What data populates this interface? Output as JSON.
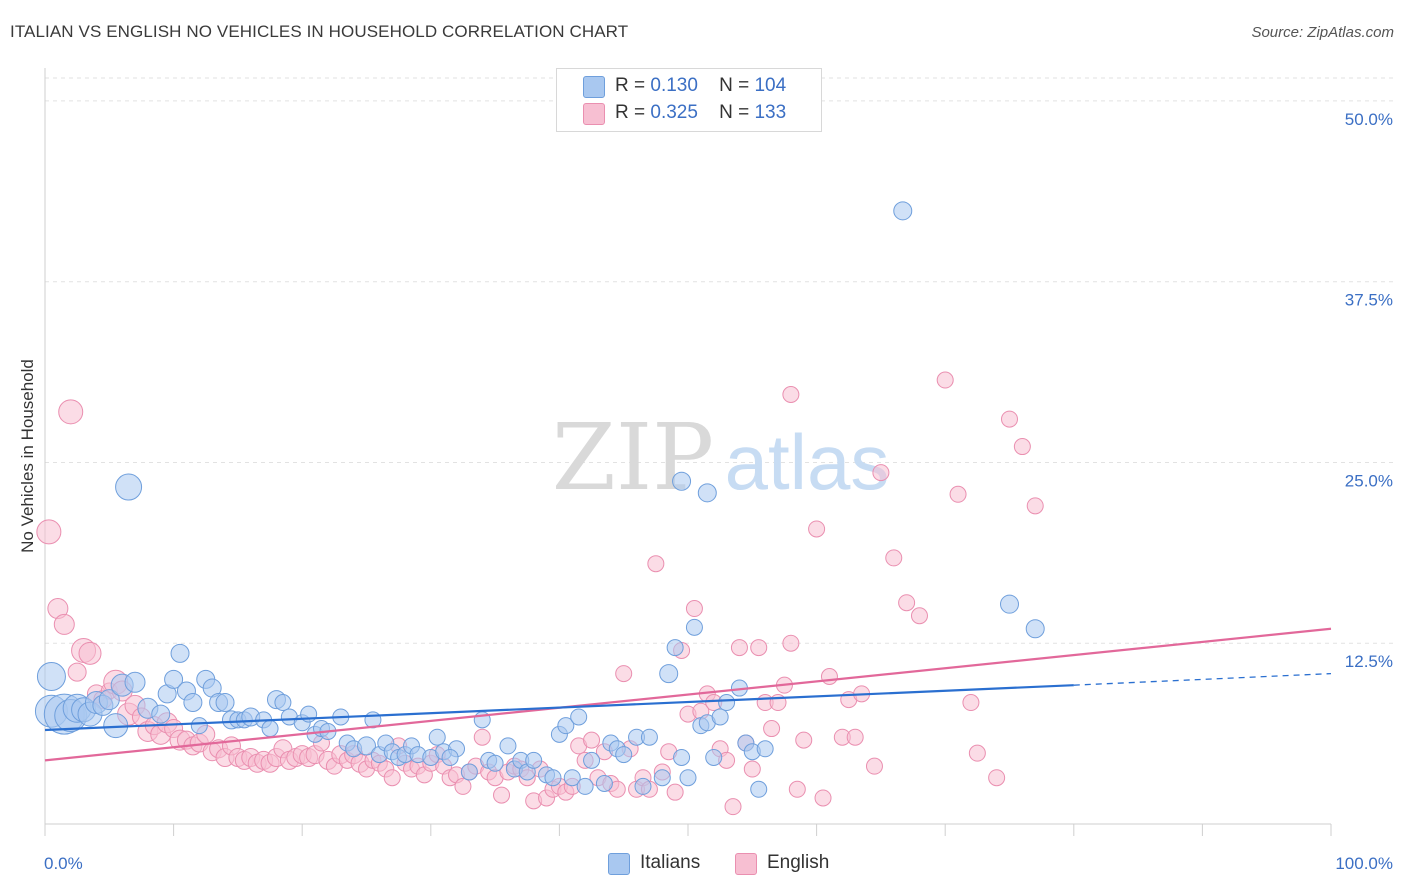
{
  "header": {
    "title": "ITALIAN VS ENGLISH NO VEHICLES IN HOUSEHOLD CORRELATION CHART",
    "source": "Source: ZipAtlas.com"
  },
  "watermark": {
    "zip": "ZIP",
    "atlas": "atlas"
  },
  "legend": {
    "rows": [
      {
        "r_label": "R =",
        "r_value": "0.130",
        "n_label": "N =",
        "n_value": "104"
      },
      {
        "r_label": "R =",
        "r_value": "0.325",
        "n_label": "N =",
        "n_value": "133"
      }
    ]
  },
  "bottom_legend": {
    "italians": "Italians",
    "english": "English"
  },
  "colors": {
    "italians_fill": "#a9c8f0",
    "italians_stroke": "#6f9fdc",
    "italians_line": "#2a6fd0",
    "english_fill": "#f7bfd2",
    "english_stroke": "#ea8fb0",
    "english_line": "#e2689a",
    "tick_label": "#3b6fc4",
    "grid": "#e2e2e2"
  },
  "chart_data": {
    "type": "scatter",
    "title": "ITALIAN VS ENGLISH NO VEHICLES IN HOUSEHOLD CORRELATION CHART",
    "xlabel": "",
    "ylabel": "No Vehicles in Household",
    "xlim": [
      0,
      100
    ],
    "ylim": [
      0,
      52
    ],
    "x_tick_labels": [
      "0.0%",
      "100.0%"
    ],
    "y_ticks": [
      12.5,
      25.0,
      37.5,
      50.0
    ],
    "y_tick_labels": [
      "12.5%",
      "25.0%",
      "37.5%",
      "50.0%"
    ],
    "grid": "horizontal dashed",
    "legend_position": "top-center",
    "series": [
      {
        "name": "Italians",
        "R": 0.13,
        "N": 104,
        "trend": {
          "x0": 0,
          "y0": 6.5,
          "x1": 80,
          "y1": 9.6,
          "dashed_to_x": 100,
          "dashed_to_y": 10.4
        },
        "points": [
          [
            0.5,
            10.2,
            14
          ],
          [
            0.5,
            7.8,
            16
          ],
          [
            1.5,
            7.6,
            20
          ],
          [
            2,
            7.5,
            16
          ],
          [
            2.5,
            8,
            14
          ],
          [
            3,
            7.9,
            12
          ],
          [
            3.5,
            7.6,
            12
          ],
          [
            4,
            8.4,
            11
          ],
          [
            4.5,
            8.2,
            10
          ],
          [
            5,
            8.6,
            10
          ],
          [
            5.5,
            6.8,
            12
          ],
          [
            6,
            9.6,
            11
          ],
          [
            7,
            9.8,
            10
          ],
          [
            6.5,
            23.3,
            13
          ],
          [
            8,
            8,
            10
          ],
          [
            9,
            7.6,
            9
          ],
          [
            9.5,
            9,
            9
          ],
          [
            10,
            10,
            9
          ],
          [
            10.5,
            11.8,
            9
          ],
          [
            11,
            9.2,
            9
          ],
          [
            11.5,
            8.4,
            9
          ],
          [
            12,
            6.8,
            8
          ],
          [
            12.5,
            10,
            9
          ],
          [
            13,
            9.4,
            9
          ],
          [
            13.5,
            8.4,
            9
          ],
          [
            14,
            8.4,
            9
          ],
          [
            14.5,
            7.2,
            9
          ],
          [
            15,
            7.2,
            8
          ],
          [
            15.5,
            7.2,
            8
          ],
          [
            16,
            7.4,
            9
          ],
          [
            17,
            7.2,
            8
          ],
          [
            17.5,
            6.6,
            8
          ],
          [
            18,
            8.6,
            9
          ],
          [
            18.5,
            8.4,
            8
          ],
          [
            19,
            7.4,
            8
          ],
          [
            20,
            7,
            8
          ],
          [
            20.5,
            7.6,
            8
          ],
          [
            21,
            6.2,
            8
          ],
          [
            21.5,
            6.6,
            8
          ],
          [
            22,
            6.4,
            8
          ],
          [
            23,
            7.4,
            8
          ],
          [
            23.5,
            5.6,
            8
          ],
          [
            24,
            5.2,
            8
          ],
          [
            25,
            5.4,
            9
          ],
          [
            25.5,
            7.2,
            8
          ],
          [
            26,
            4.8,
            8
          ],
          [
            26.5,
            5.6,
            8
          ],
          [
            27,
            5,
            8
          ],
          [
            27.5,
            4.6,
            8
          ],
          [
            28,
            4.8,
            8
          ],
          [
            28.5,
            5.4,
            8
          ],
          [
            29,
            4.8,
            8
          ],
          [
            30,
            4.6,
            8
          ],
          [
            30.5,
            6,
            8
          ],
          [
            31,
            5,
            8
          ],
          [
            32,
            5.2,
            8
          ],
          [
            33,
            3.6,
            8
          ],
          [
            31.5,
            4.6,
            8
          ],
          [
            34,
            7.2,
            8
          ],
          [
            34.5,
            4.4,
            8
          ],
          [
            35,
            4.2,
            8
          ],
          [
            36,
            5.4,
            8
          ],
          [
            36.5,
            3.8,
            8
          ],
          [
            37,
            4.4,
            8
          ],
          [
            37.5,
            3.6,
            8
          ],
          [
            38,
            4.4,
            8
          ],
          [
            39,
            3.4,
            8
          ],
          [
            39.5,
            3.2,
            8
          ],
          [
            40,
            6.2,
            8
          ],
          [
            40.5,
            6.8,
            8
          ],
          [
            41,
            3.2,
            8
          ],
          [
            41.5,
            7.4,
            8
          ],
          [
            42,
            2.6,
            8
          ],
          [
            42.5,
            4.4,
            8
          ],
          [
            43.5,
            2.8,
            8
          ],
          [
            44,
            5.6,
            8
          ],
          [
            44.5,
            5.2,
            8
          ],
          [
            45,
            4.8,
            8
          ],
          [
            46,
            6,
            8
          ],
          [
            46.5,
            2.6,
            8
          ],
          [
            47,
            6,
            8
          ],
          [
            48,
            3.2,
            8
          ],
          [
            48.5,
            10.4,
            9
          ],
          [
            49,
            12.2,
            8
          ],
          [
            49.5,
            4.6,
            8
          ],
          [
            50,
            3.2,
            8
          ],
          [
            51,
            6.8,
            8
          ],
          [
            51.5,
            7,
            8
          ],
          [
            52,
            4.6,
            8
          ],
          [
            52.5,
            7.4,
            8
          ],
          [
            53,
            8.4,
            8
          ],
          [
            49.5,
            23.7,
            9
          ],
          [
            51.5,
            22.9,
            9
          ],
          [
            50.5,
            13.6,
            8
          ],
          [
            54.5,
            5.6,
            8
          ],
          [
            55,
            5,
            8
          ],
          [
            56,
            5.2,
            8
          ],
          [
            54,
            9.4,
            8
          ],
          [
            55.5,
            2.4,
            8
          ],
          [
            66.7,
            42.4,
            9
          ],
          [
            75,
            15.2,
            9
          ],
          [
            77,
            13.5,
            9
          ]
        ]
      },
      {
        "name": "English",
        "R": 0.325,
        "N": 133,
        "trend": {
          "x0": 0,
          "y0": 4.4,
          "x1": 100,
          "y1": 13.5
        },
        "points": [
          [
            0.3,
            20.2,
            12
          ],
          [
            1,
            14.9,
            10
          ],
          [
            1.5,
            13.8,
            10
          ],
          [
            2,
            28.5,
            12
          ],
          [
            2.5,
            10.5,
            9
          ],
          [
            3,
            12,
            12
          ],
          [
            3.5,
            11.8,
            11
          ],
          [
            4,
            9,
            9
          ],
          [
            4.5,
            8.6,
            9
          ],
          [
            5,
            9.2,
            8
          ],
          [
            5.5,
            9.8,
            12
          ],
          [
            6,
            9.2,
            10
          ],
          [
            6.5,
            7.6,
            11
          ],
          [
            7,
            8.2,
            10
          ],
          [
            7.5,
            7.4,
            9
          ],
          [
            8,
            6.4,
            10
          ],
          [
            8.5,
            6.8,
            9
          ],
          [
            9,
            6.2,
            10
          ],
          [
            9.5,
            7,
            10
          ],
          [
            10,
            6.6,
            9
          ],
          [
            10.5,
            5.8,
            10
          ],
          [
            11,
            5.8,
            9
          ],
          [
            11.5,
            5.4,
            9
          ],
          [
            12,
            5.6,
            9
          ],
          [
            12.5,
            6.2,
            9
          ],
          [
            13,
            5,
            9
          ],
          [
            13.5,
            5.2,
            9
          ],
          [
            14,
            4.6,
            9
          ],
          [
            14.5,
            5.4,
            9
          ],
          [
            15,
            4.6,
            9
          ],
          [
            15.5,
            4.4,
            9
          ],
          [
            16,
            4.6,
            9
          ],
          [
            16.5,
            4.2,
            9
          ],
          [
            17,
            4.4,
            9
          ],
          [
            17.5,
            4.2,
            9
          ],
          [
            18,
            4.6,
            9
          ],
          [
            18.5,
            5.2,
            9
          ],
          [
            19,
            4.4,
            9
          ],
          [
            19.5,
            4.6,
            9
          ],
          [
            20,
            4.8,
            9
          ],
          [
            20.5,
            4.6,
            9
          ],
          [
            21,
            4.8,
            9
          ],
          [
            21.5,
            5.6,
            8
          ],
          [
            22,
            4.4,
            9
          ],
          [
            22.5,
            4,
            8
          ],
          [
            23,
            4.8,
            9
          ],
          [
            23.5,
            4.4,
            8
          ],
          [
            24,
            4.8,
            9
          ],
          [
            24.5,
            4.2,
            9
          ],
          [
            25,
            3.8,
            8
          ],
          [
            25.5,
            4.4,
            8
          ],
          [
            26,
            4.2,
            8
          ],
          [
            26.5,
            3.8,
            8
          ],
          [
            27,
            3.2,
            8
          ],
          [
            27.5,
            5.4,
            8
          ],
          [
            28,
            4.2,
            8
          ],
          [
            28.5,
            3.8,
            8
          ],
          [
            29,
            4,
            8
          ],
          [
            29.5,
            3.4,
            8
          ],
          [
            30,
            4.2,
            8
          ],
          [
            30.5,
            4.8,
            8
          ],
          [
            31,
            4,
            8
          ],
          [
            31.5,
            3.2,
            8
          ],
          [
            32,
            3.4,
            8
          ],
          [
            32.5,
            2.6,
            8
          ],
          [
            33,
            3.6,
            8
          ],
          [
            33.5,
            4,
            8
          ],
          [
            34,
            6,
            8
          ],
          [
            34.5,
            3.6,
            8
          ],
          [
            35,
            3.2,
            8
          ],
          [
            35.5,
            2,
            8
          ],
          [
            36,
            3.6,
            8
          ],
          [
            36.5,
            4,
            8
          ],
          [
            37,
            3.8,
            8
          ],
          [
            37.5,
            3.2,
            8
          ],
          [
            38,
            1.6,
            8
          ],
          [
            38.5,
            3.8,
            8
          ],
          [
            39,
            1.8,
            8
          ],
          [
            39.5,
            2.4,
            8
          ],
          [
            40,
            2.6,
            8
          ],
          [
            40.5,
            2.2,
            8
          ],
          [
            41,
            2.6,
            8
          ],
          [
            41.5,
            5.4,
            8
          ],
          [
            42,
            4.4,
            8
          ],
          [
            42.5,
            5.8,
            8
          ],
          [
            43,
            3.2,
            8
          ],
          [
            43.5,
            5,
            8
          ],
          [
            44,
            2.8,
            8
          ],
          [
            44.5,
            2.4,
            8
          ],
          [
            45,
            10.4,
            8
          ],
          [
            45.5,
            5.2,
            8
          ],
          [
            46,
            2.4,
            8
          ],
          [
            46.5,
            3.2,
            8
          ],
          [
            47,
            2.4,
            8
          ],
          [
            47.5,
            18,
            8
          ],
          [
            48,
            3.6,
            8
          ],
          [
            48.5,
            5,
            8
          ],
          [
            49,
            2.2,
            8
          ],
          [
            49.5,
            12,
            8
          ],
          [
            50,
            7.6,
            8
          ],
          [
            50.5,
            14.9,
            8
          ],
          [
            51,
            7.8,
            8
          ],
          [
            51.5,
            9,
            8
          ],
          [
            52,
            8.4,
            8
          ],
          [
            52.5,
            5.2,
            8
          ],
          [
            53,
            4.4,
            8
          ],
          [
            53.5,
            1.2,
            8
          ],
          [
            54,
            12.2,
            8
          ],
          [
            54.5,
            5.6,
            8
          ],
          [
            55,
            3.8,
            8
          ],
          [
            55.5,
            12.2,
            8
          ],
          [
            56,
            8.4,
            8
          ],
          [
            56.5,
            6.6,
            8
          ],
          [
            57,
            8.4,
            8
          ],
          [
            57.5,
            9.6,
            8
          ],
          [
            58,
            12.5,
            8
          ],
          [
            58.5,
            2.4,
            8
          ],
          [
            59,
            5.8,
            8
          ],
          [
            60,
            20.4,
            8
          ],
          [
            60.5,
            1.8,
            8
          ],
          [
            61,
            10.2,
            8
          ],
          [
            62,
            6,
            8
          ],
          [
            62.5,
            8.6,
            8
          ],
          [
            63,
            6,
            8
          ],
          [
            63.5,
            9,
            8
          ],
          [
            64.5,
            4,
            8
          ],
          [
            66,
            18.4,
            8
          ],
          [
            65,
            24.3,
            8
          ],
          [
            67,
            15.3,
            8
          ],
          [
            68,
            14.4,
            8
          ],
          [
            70,
            30.7,
            8
          ],
          [
            71,
            22.8,
            8
          ],
          [
            72,
            8.4,
            8
          ],
          [
            72.5,
            4.9,
            8
          ],
          [
            74,
            3.2,
            8
          ],
          [
            75,
            28,
            8
          ],
          [
            76,
            26.1,
            8
          ],
          [
            77,
            22,
            8
          ],
          [
            58,
            29.7,
            8
          ]
        ]
      }
    ]
  }
}
